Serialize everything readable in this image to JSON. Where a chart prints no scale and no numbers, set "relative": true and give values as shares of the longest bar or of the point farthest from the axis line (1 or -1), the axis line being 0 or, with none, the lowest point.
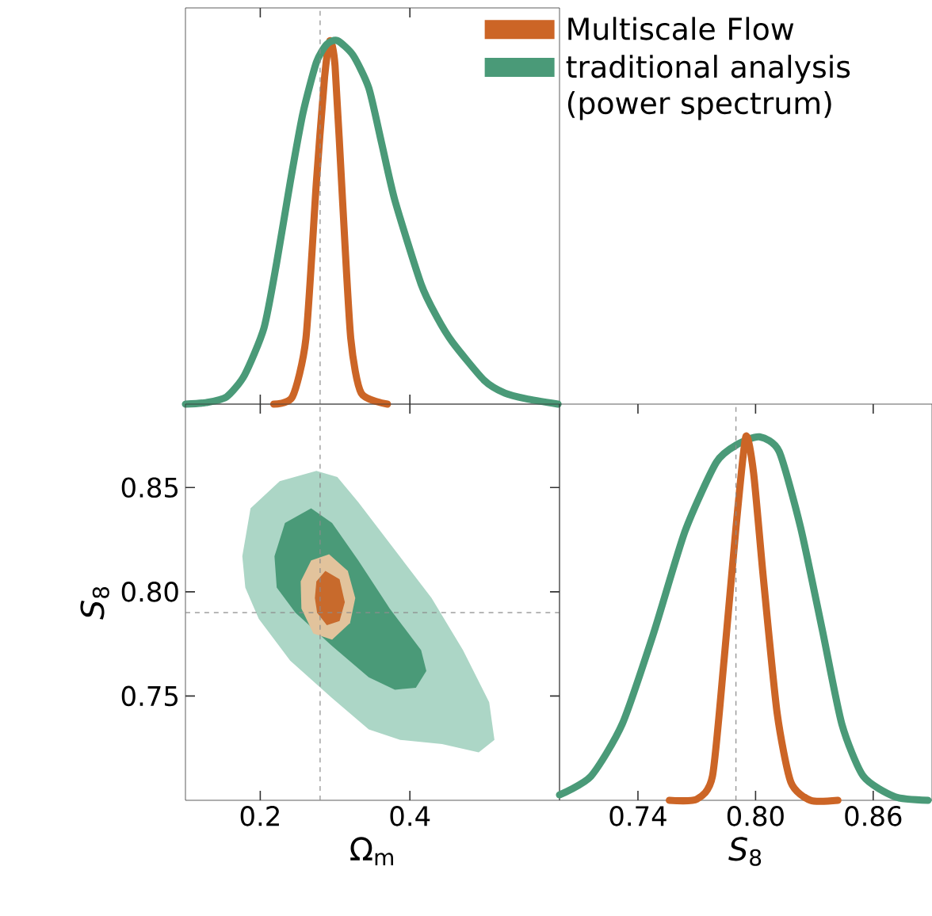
{
  "chart_data": [
    {
      "type": "line",
      "relative": true,
      "xlim": [
        0.1,
        0.6
      ],
      "xticks": [
        0.2,
        0.4
      ],
      "tick_labels": false,
      "legend": "top right",
      "ref_lines": [
        {
          "axis": "x",
          "value": 0.28
        }
      ],
      "series": [
        {
          "name": "Multiscale Flow",
          "color": "#cc6526",
          "x": [
            0.218,
            0.243,
            0.261,
            0.275,
            0.286,
            0.293,
            0.3,
            0.31,
            0.321,
            0.335,
            0.37
          ],
          "values": [
            0.0,
            0.02,
            0.18,
            0.61,
            0.9,
            1.0,
            0.93,
            0.56,
            0.18,
            0.03,
            0.0
          ]
        },
        {
          "name": "traditional analysis (power spectrum)",
          "color": "#4a9a78",
          "x": [
            0.1,
            0.127,
            0.155,
            0.179,
            0.205,
            0.222,
            0.24,
            0.257,
            0.275,
            0.289,
            0.303,
            0.324,
            0.345,
            0.362,
            0.38,
            0.415,
            0.436,
            0.457,
            0.499,
            0.527,
            0.555,
            0.598
          ],
          "values": [
            0.0,
            0.004,
            0.02,
            0.08,
            0.21,
            0.39,
            0.61,
            0.8,
            0.94,
            0.99,
            1.0,
            0.96,
            0.87,
            0.72,
            0.56,
            0.33,
            0.24,
            0.17,
            0.066,
            0.03,
            0.015,
            0.0
          ]
        }
      ]
    },
    {
      "type": "area",
      "xlim": [
        0.1,
        0.6
      ],
      "ylim": [
        0.7,
        0.89
      ],
      "xticks": [
        0.2,
        0.4
      ],
      "yticks": [
        0.75,
        0.85,
        {
          "value": 0.8,
          "label": "0.80"
        }
      ],
      "xlabel": "Ω$_{m}$",
      "ylabel": "*S*$_{8}$",
      "ref_lines": [
        {
          "axis": "x",
          "value": 0.28
        },
        {
          "axis": "y",
          "value": 0.79
        }
      ],
      "series": [
        {
          "color": "#acd6c6",
          "x": [
            0.176,
            0.187,
            0.226,
            0.275,
            0.303,
            0.331,
            0.38,
            0.429,
            0.471,
            0.506,
            0.513,
            0.492,
            0.443,
            0.387,
            0.345,
            0.296,
            0.24,
            0.198,
            0.18
          ],
          "values": [
            0.817,
            0.84,
            0.853,
            0.858,
            0.855,
            0.843,
            0.82,
            0.797,
            0.772,
            0.747,
            0.729,
            0.723,
            0.727,
            0.729,
            0.734,
            0.749,
            0.767,
            0.787,
            0.802
          ]
        },
        {
          "color": "#4a9a78",
          "x": [
            0.219,
            0.233,
            0.268,
            0.296,
            0.331,
            0.373,
            0.415,
            0.422,
            0.408,
            0.38,
            0.345,
            0.296,
            0.247,
            0.222
          ],
          "values": [
            0.817,
            0.833,
            0.84,
            0.833,
            0.815,
            0.792,
            0.772,
            0.762,
            0.754,
            0.753,
            0.759,
            0.774,
            0.79,
            0.802
          ]
        },
        {
          "color": "#e2c39c",
          "x": [
            0.254,
            0.268,
            0.292,
            0.317,
            0.327,
            0.32,
            0.296,
            0.271,
            0.255
          ],
          "values": [
            0.805,
            0.815,
            0.818,
            0.81,
            0.797,
            0.785,
            0.777,
            0.78,
            0.792
          ]
        },
        {
          "color": "#c86a2c",
          "x": [
            0.275,
            0.287,
            0.306,
            0.313,
            0.306,
            0.289,
            0.276,
            0.273
          ],
          "values": [
            0.805,
            0.81,
            0.806,
            0.795,
            0.786,
            0.784,
            0.79,
            0.797
          ]
        }
      ]
    },
    {
      "type": "line",
      "relative": true,
      "xlim": [
        0.7,
        0.89
      ],
      "xticks": [
        0.74,
        {
          "value": 0.8,
          "label": "0.80"
        },
        0.86
      ],
      "xlabel": "*S*$_{8}$",
      "ref_lines": [
        {
          "axis": "x",
          "value": 0.79
        }
      ],
      "series": [
        {
          "color": "#4a9a78",
          "x": [
            0.7,
            0.716,
            0.732,
            0.748,
            0.764,
            0.78,
            0.791,
            0.802,
            0.812,
            0.823,
            0.834,
            0.844,
            0.855,
            0.871,
            0.888
          ],
          "values": [
            0.015,
            0.066,
            0.21,
            0.46,
            0.74,
            0.93,
            0.98,
            1.0,
            0.96,
            0.75,
            0.47,
            0.21,
            0.066,
            0.01,
            0.0
          ]
        },
        {
          "color": "#cc6526",
          "x": [
            0.756,
            0.77,
            0.778,
            0.784,
            0.79,
            0.795,
            0.799,
            0.804,
            0.811,
            0.818,
            0.828,
            0.842
          ],
          "values": [
            0.0,
            0.003,
            0.066,
            0.39,
            0.75,
            1.0,
            0.9,
            0.61,
            0.24,
            0.05,
            0.0,
            0.0
          ]
        }
      ]
    }
  ]
}
